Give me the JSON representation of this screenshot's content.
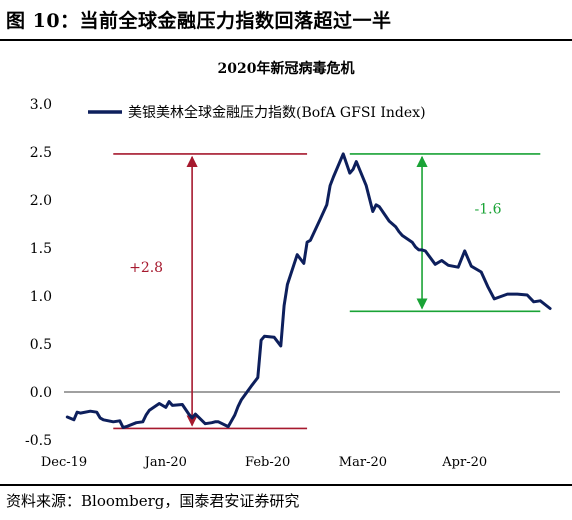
{
  "figure": {
    "title": "图 10：当前全球金融压力指数回落超过一半",
    "source": "资料来源：Bloomberg，国泰君安证券研究"
  },
  "colors": {
    "series": "#0d1f5c",
    "rise_annotation": "#a6192e",
    "fall_annotation": "#1aa336"
  },
  "chart_data": {
    "type": "line",
    "title": "2020年新冠病毒危机",
    "xlabel": "",
    "ylabel": "",
    "ylim": [
      -0.5,
      3.0
    ],
    "yticks": [
      -0.5,
      0.0,
      0.5,
      1.0,
      1.5,
      2.0,
      2.5,
      3.0
    ],
    "ytick_labels": [
      "-0.5",
      "0.0",
      "0.5",
      "1.0",
      "1.5",
      "2.0",
      "2.5",
      "3.0"
    ],
    "xrange": [
      "2019-12-01",
      "2020-04-30"
    ],
    "xticks": [
      {
        "date": "2019-12-01",
        "label": "Dec-19"
      },
      {
        "date": "2020-01-01",
        "label": "Jan-20"
      },
      {
        "date": "2020-02-01",
        "label": "Feb-20"
      },
      {
        "date": "2020-03-01",
        "label": "Mar-20"
      },
      {
        "date": "2020-04-01",
        "label": "Apr-20"
      }
    ],
    "grid": false,
    "legend_position": "top",
    "series": [
      {
        "name": "美银美林全球金融压力指数(BofA GFSI Index)",
        "x": [
          "2019-12-02",
          "2019-12-04",
          "2019-12-05",
          "2019-12-06",
          "2019-12-09",
          "2019-12-11",
          "2019-12-12",
          "2019-12-13",
          "2019-12-16",
          "2019-12-18",
          "2019-12-19",
          "2019-12-20",
          "2019-12-23",
          "2019-12-25",
          "2019-12-26",
          "2019-12-27",
          "2019-12-30",
          "2020-01-01",
          "2020-01-02",
          "2020-01-03",
          "2020-01-06",
          "2020-01-08",
          "2020-01-09",
          "2020-01-10",
          "2020-01-13",
          "2020-01-15",
          "2020-01-16",
          "2020-01-17",
          "2020-01-20",
          "2020-01-22",
          "2020-01-23",
          "2020-01-24",
          "2020-01-27",
          "2020-01-29",
          "2020-01-30",
          "2020-01-31",
          "2020-02-03",
          "2020-02-05",
          "2020-02-06",
          "2020-02-07",
          "2020-02-10",
          "2020-02-12",
          "2020-02-13",
          "2020-02-14",
          "2020-02-17",
          "2020-02-19",
          "2020-02-20",
          "2020-02-21",
          "2020-02-24",
          "2020-02-26",
          "2020-02-27",
          "2020-02-28",
          "2020-03-02",
          "2020-03-04",
          "2020-03-05",
          "2020-03-06",
          "2020-03-09",
          "2020-03-11",
          "2020-03-12",
          "2020-03-13",
          "2020-03-16",
          "2020-03-17",
          "2020-03-18",
          "2020-03-19",
          "2020-03-20",
          "2020-03-23",
          "2020-03-25",
          "2020-03-27",
          "2020-03-30",
          "2020-04-01",
          "2020-04-03",
          "2020-04-06",
          "2020-04-08",
          "2020-04-10",
          "2020-04-14",
          "2020-04-17",
          "2020-04-20",
          "2020-04-22",
          "2020-04-24",
          "2020-04-27"
        ],
        "values": [
          -0.26,
          -0.29,
          -0.21,
          -0.22,
          -0.2,
          -0.21,
          -0.27,
          -0.29,
          -0.31,
          -0.3,
          -0.37,
          -0.36,
          -0.32,
          -0.31,
          -0.24,
          -0.19,
          -0.12,
          -0.16,
          -0.1,
          -0.14,
          -0.13,
          -0.23,
          -0.27,
          -0.23,
          -0.33,
          -0.32,
          -0.31,
          -0.31,
          -0.36,
          -0.24,
          -0.15,
          -0.08,
          0.06,
          0.15,
          0.54,
          0.58,
          0.57,
          0.48,
          0.9,
          1.12,
          1.43,
          1.34,
          1.56,
          1.58,
          1.8,
          1.95,
          2.15,
          2.24,
          2.48,
          2.28,
          2.32,
          2.4,
          2.15,
          1.88,
          1.95,
          1.93,
          1.78,
          1.72,
          1.67,
          1.63,
          1.56,
          1.51,
          1.48,
          1.48,
          1.47,
          1.33,
          1.37,
          1.32,
          1.3,
          1.47,
          1.31,
          1.25,
          1.1,
          0.97,
          1.02,
          1.02,
          1.01,
          0.94,
          0.95,
          0.87
        ]
      }
    ],
    "annotations": [
      {
        "label": "+2.8",
        "from_y": -0.38,
        "to_y": 2.48,
        "x": "2020-01-09",
        "span": [
          "2019-12-16",
          "2020-02-13"
        ]
      },
      {
        "label": "-1.6",
        "from_y": 2.48,
        "to_y": 0.84,
        "x": "2020-03-19",
        "span": [
          "2020-02-26",
          "2020-04-24"
        ]
      }
    ]
  }
}
